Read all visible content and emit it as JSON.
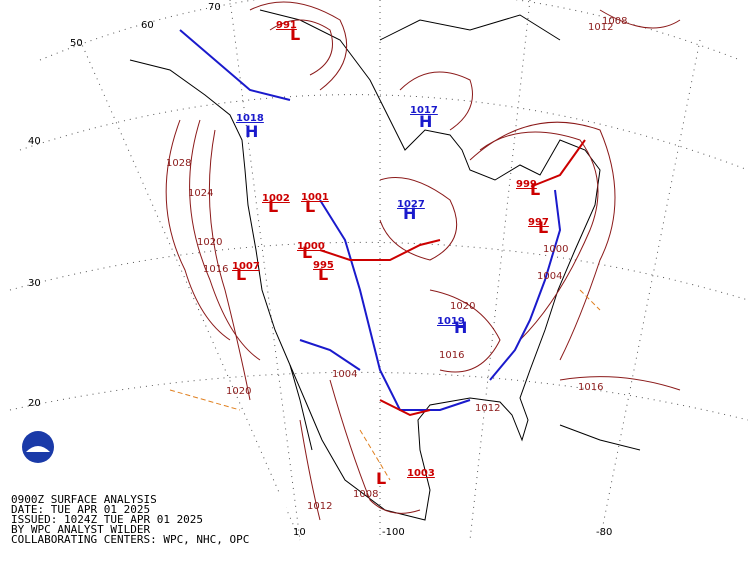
{
  "caption": {
    "lines": [
      "0900Z SURFACE ANALYSIS",
      "DATE: TUE APR 01 2025",
      "ISSUED: 1024Z TUE APR 01 2025",
      "BY WPC ANALYST WILDER",
      "COLLABORATING CENTERS: WPC, NHC, OPC"
    ]
  },
  "grid_labels": {
    "latitude": [
      "50",
      "40",
      "30",
      "20"
    ],
    "top": [
      "60",
      "70"
    ],
    "longitude": [
      "10",
      "-100",
      "-80"
    ]
  },
  "pressure_centers": [
    {
      "symbol": "H",
      "pressure": "1018"
    },
    {
      "symbol": "H",
      "pressure": "1017"
    },
    {
      "symbol": "H",
      "pressure": "1027"
    },
    {
      "symbol": "H",
      "pressure": "1019"
    },
    {
      "symbol": "L",
      "pressure": "1002"
    },
    {
      "symbol": "L",
      "pressure": "1001"
    },
    {
      "symbol": "L",
      "pressure": "1000"
    },
    {
      "symbol": "L",
      "pressure": "1007"
    },
    {
      "symbol": "L",
      "pressure": "995"
    },
    {
      "symbol": "L",
      "pressure": "999"
    },
    {
      "symbol": "L",
      "pressure": "997"
    },
    {
      "symbol": "L",
      "pressure": "1003"
    },
    {
      "symbol": "L",
      "pressure": "991"
    }
  ],
  "isobar_labels": [
    "1028",
    "1024",
    "1020",
    "1016",
    "1020",
    "1008",
    "1012",
    "1012",
    "1016",
    "1008",
    "1012",
    "1004",
    "1004",
    "1000",
    "1020",
    "1016"
  ]
}
